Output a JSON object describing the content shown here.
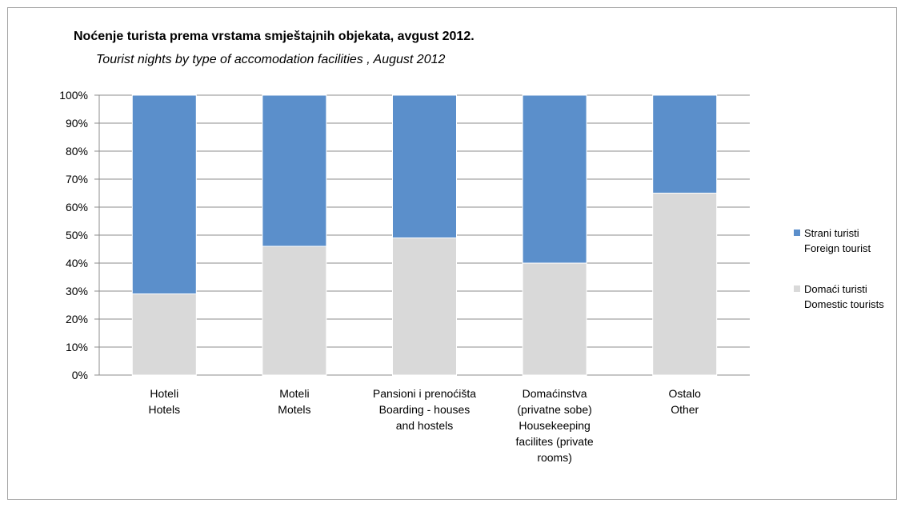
{
  "chart_data": {
    "type": "bar",
    "stacked": true,
    "title": "Noćenje turista prema vrstama smještajnih objekata, avgust 2012.",
    "subtitle": "Tourist nights by type of accomodation facilities , August 2012",
    "categories": [
      [
        "Hoteli",
        "Hotels"
      ],
      [
        "Moteli",
        "Motels"
      ],
      [
        "Pansioni  i  prenoćišta",
        "Boarding - houses",
        "and hostels"
      ],
      [
        "Domaćinstva",
        "(privatne sobe)",
        "Housekeeping",
        "facilites (private",
        "rooms)"
      ],
      [
        "Ostalo",
        "Other"
      ]
    ],
    "series": [
      {
        "name": [
          "Domaći turisti",
          "Domestic tourists"
        ],
        "color": "#d9d9d9",
        "values": [
          29,
          46,
          49,
          40,
          65
        ]
      },
      {
        "name": [
          "Strani turisti",
          "Foreign tourist"
        ],
        "color": "#5b8fcb",
        "values": [
          71,
          54,
          51,
          60,
          35
        ]
      }
    ],
    "yticks": [
      "0%",
      "10%",
      "20%",
      "30%",
      "40%",
      "50%",
      "60%",
      "70%",
      "80%",
      "90%",
      "100%"
    ],
    "ylim": [
      0,
      100
    ],
    "grid": true,
    "legend_position": "right"
  }
}
